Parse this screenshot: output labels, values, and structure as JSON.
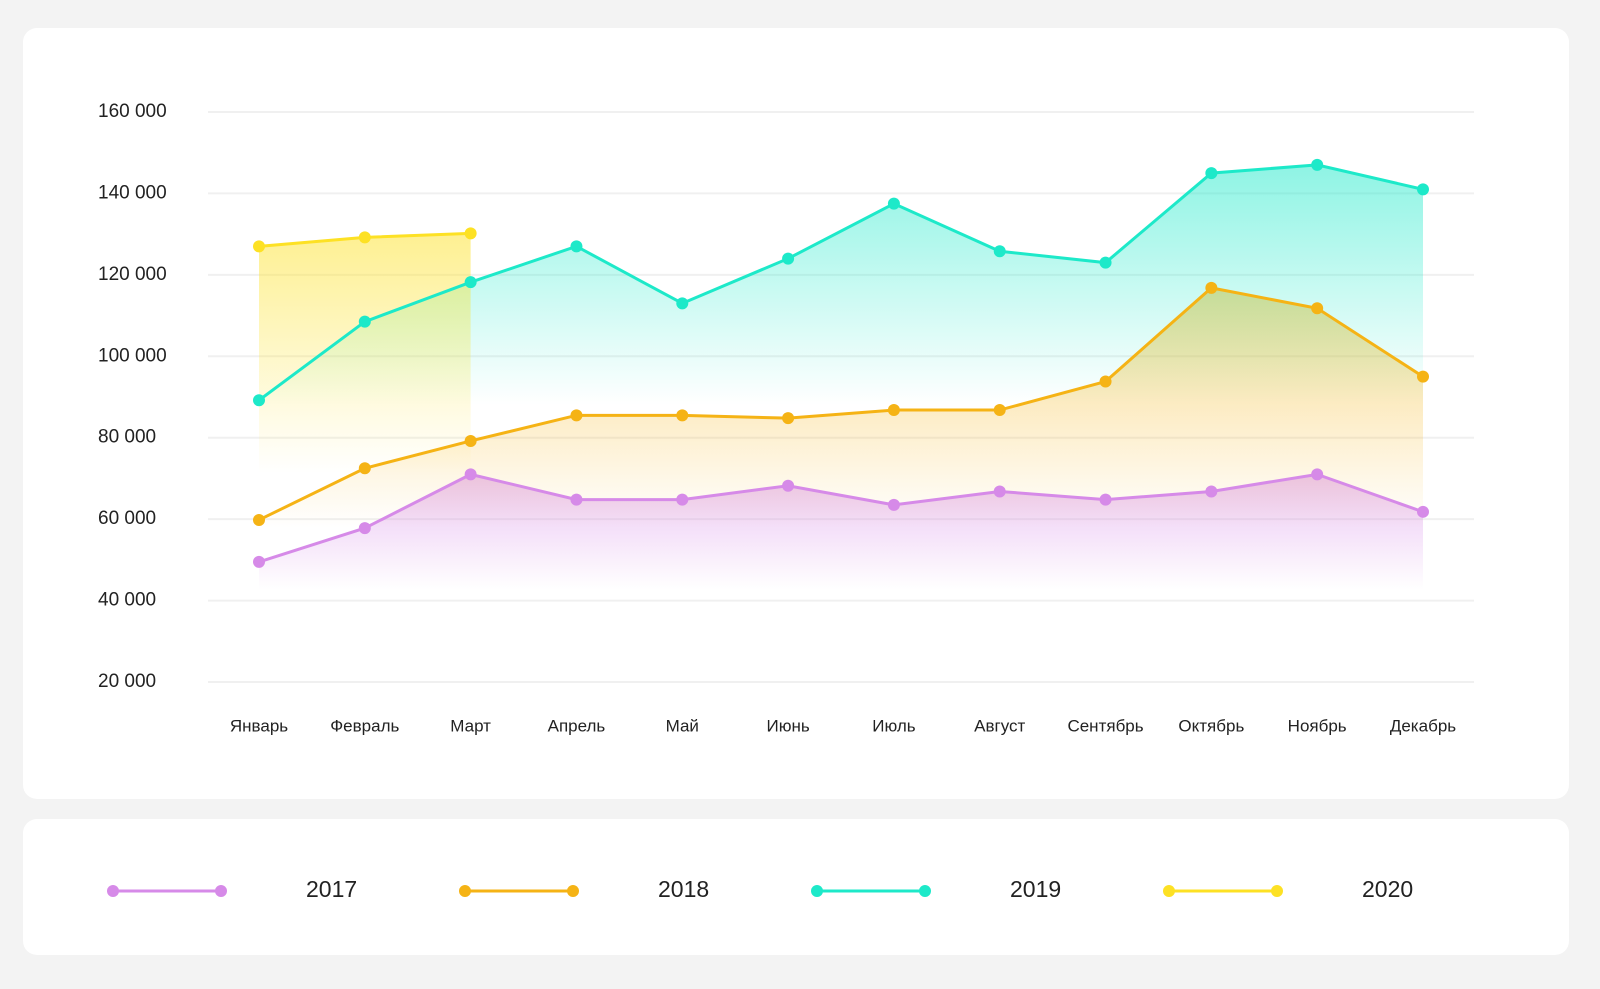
{
  "chart_data": {
    "type": "line",
    "categories": [
      "Январь",
      "Февраль",
      "Март",
      "Апрель",
      "Май",
      "Июнь",
      "Июль",
      "Август",
      "Сентябрь",
      "Октябрь",
      "Ноябрь",
      "Декабрь"
    ],
    "series": [
      {
        "name": "2017",
        "color": "#d68ae8",
        "values": [
          49500,
          57800,
          71000,
          64800,
          64800,
          68200,
          63500,
          66800,
          64800,
          66800,
          71000,
          61800
        ]
      },
      {
        "name": "2018",
        "color": "#f5b315",
        "values": [
          59800,
          72500,
          79200,
          85500,
          85500,
          84800,
          86800,
          86800,
          93800,
          116800,
          111800,
          95000
        ]
      },
      {
        "name": "2019",
        "color": "#1de9c9",
        "values": [
          89200,
          108500,
          118200,
          127000,
          113000,
          124000,
          137500,
          125800,
          123000,
          145000,
          147000,
          141000
        ]
      },
      {
        "name": "2020",
        "color": "#fde124",
        "values": [
          127000,
          129200,
          130200,
          null,
          null,
          null,
          null,
          null,
          null,
          null,
          null,
          null
        ]
      }
    ],
    "ylim": [
      20000,
      160000
    ],
    "yticks": [
      {
        "value": 20000,
        "label": "20 000"
      },
      {
        "value": 40000,
        "label": "40 000"
      },
      {
        "value": 60000,
        "label": "60 000"
      },
      {
        "value": 80000,
        "label": "80 000"
      },
      {
        "value": 100000,
        "label": "100 000"
      },
      {
        "value": 120000,
        "label": "120 000"
      },
      {
        "value": 140000,
        "label": "140 000"
      },
      {
        "value": 160000,
        "label": "160 000"
      }
    ],
    "grid": true
  }
}
